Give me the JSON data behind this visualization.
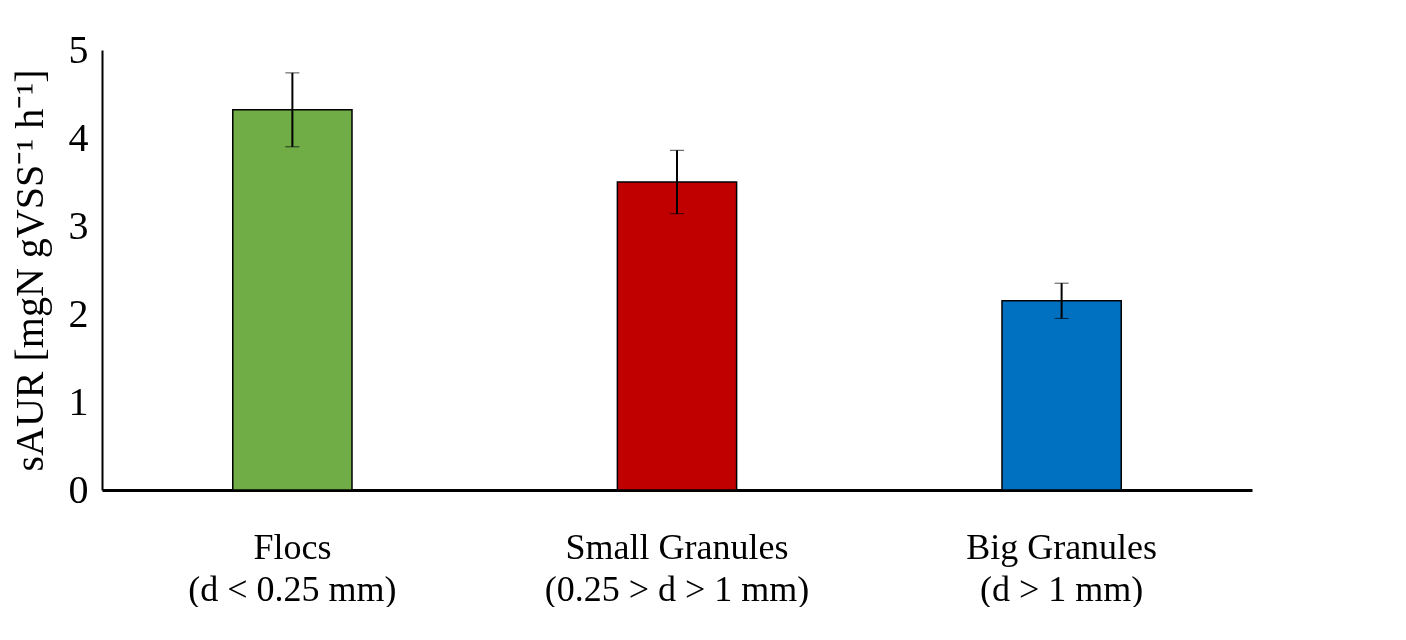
{
  "chart_data": {
    "type": "bar",
    "ylabel": "sAUR [mgN gVSS⁻¹ h⁻¹]",
    "categories": [
      "Flocs\n(d < 0.25 mm)",
      "Small Granules\n(0.25 > d > 1 mm)",
      "Big Granules\n(d > 1 mm)"
    ],
    "values": [
      4.32,
      3.5,
      2.15
    ],
    "colors": [
      "#70ad47",
      "#c00000",
      "#0070c0"
    ],
    "errors": [
      0.42,
      0.36,
      0.2
    ],
    "ylim": [
      0,
      5
    ],
    "yticks": [
      0,
      1,
      2,
      3,
      4,
      5
    ],
    "grid": false,
    "legend": false
  }
}
